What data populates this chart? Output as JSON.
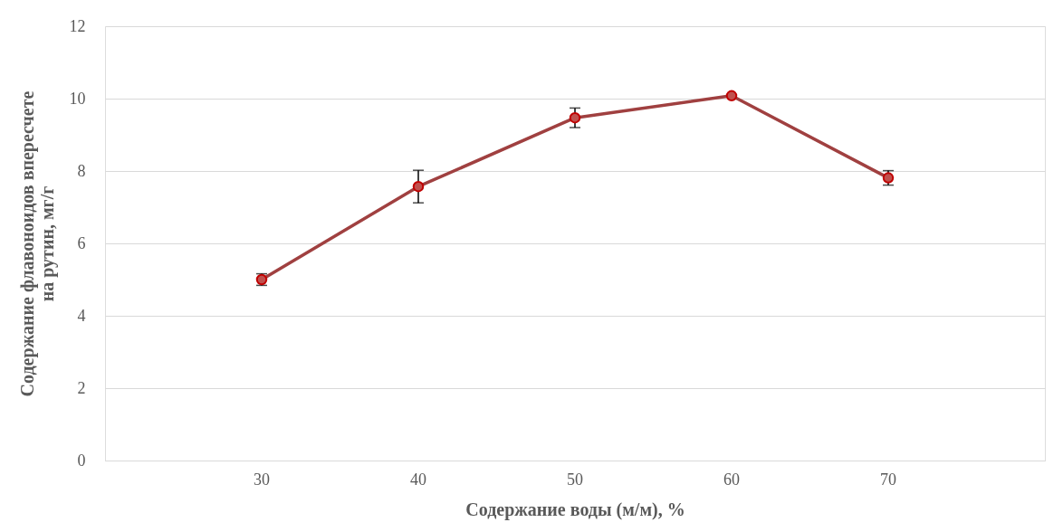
{
  "chart_data": {
    "type": "line",
    "xlabel": "Содержание воды (м/м), %",
    "ylabel": "Содержание флавоноидов впересчете\nна рутин, мг/г",
    "categories": [
      "30",
      "40",
      "50",
      "60",
      "70"
    ],
    "series": [
      {
        "color": "#a04040",
        "values": [
          5.0,
          7.57,
          9.47,
          10.08,
          7.81
        ],
        "errors": [
          0.16,
          0.45,
          0.27,
          null,
          0.2
        ]
      }
    ],
    "ylim": [
      0,
      12
    ],
    "yticks": [
      0,
      2,
      4,
      6,
      8,
      10,
      12
    ],
    "grid": "y",
    "marker": "circle",
    "line_style": "solid"
  }
}
